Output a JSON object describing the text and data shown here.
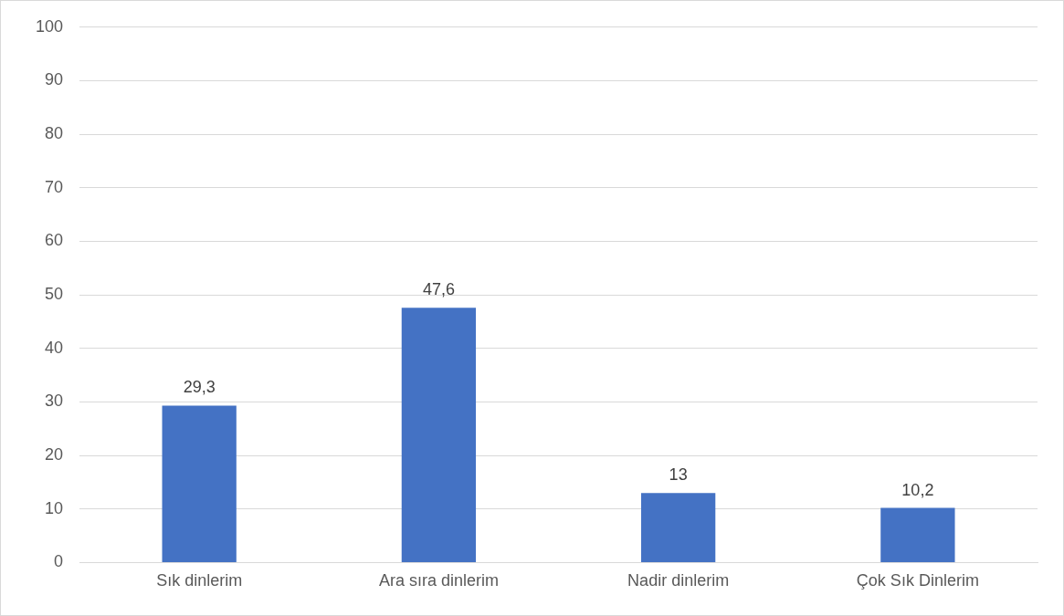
{
  "chart_data": {
    "type": "bar",
    "categories": [
      "Sık dinlerim",
      "Ara sıra dinlerim",
      "Nadir dinlerim",
      "Çok Sık Dinlerim"
    ],
    "values": [
      29.3,
      47.6,
      13,
      10.2
    ],
    "value_labels": [
      "29,3",
      "47,6",
      "13",
      "10,2"
    ],
    "color": "#4472c4",
    "ylim": [
      0,
      100
    ],
    "yticks": [
      0,
      10,
      20,
      30,
      40,
      50,
      60,
      70,
      80,
      90,
      100
    ],
    "grid": "y",
    "legend": false
  }
}
